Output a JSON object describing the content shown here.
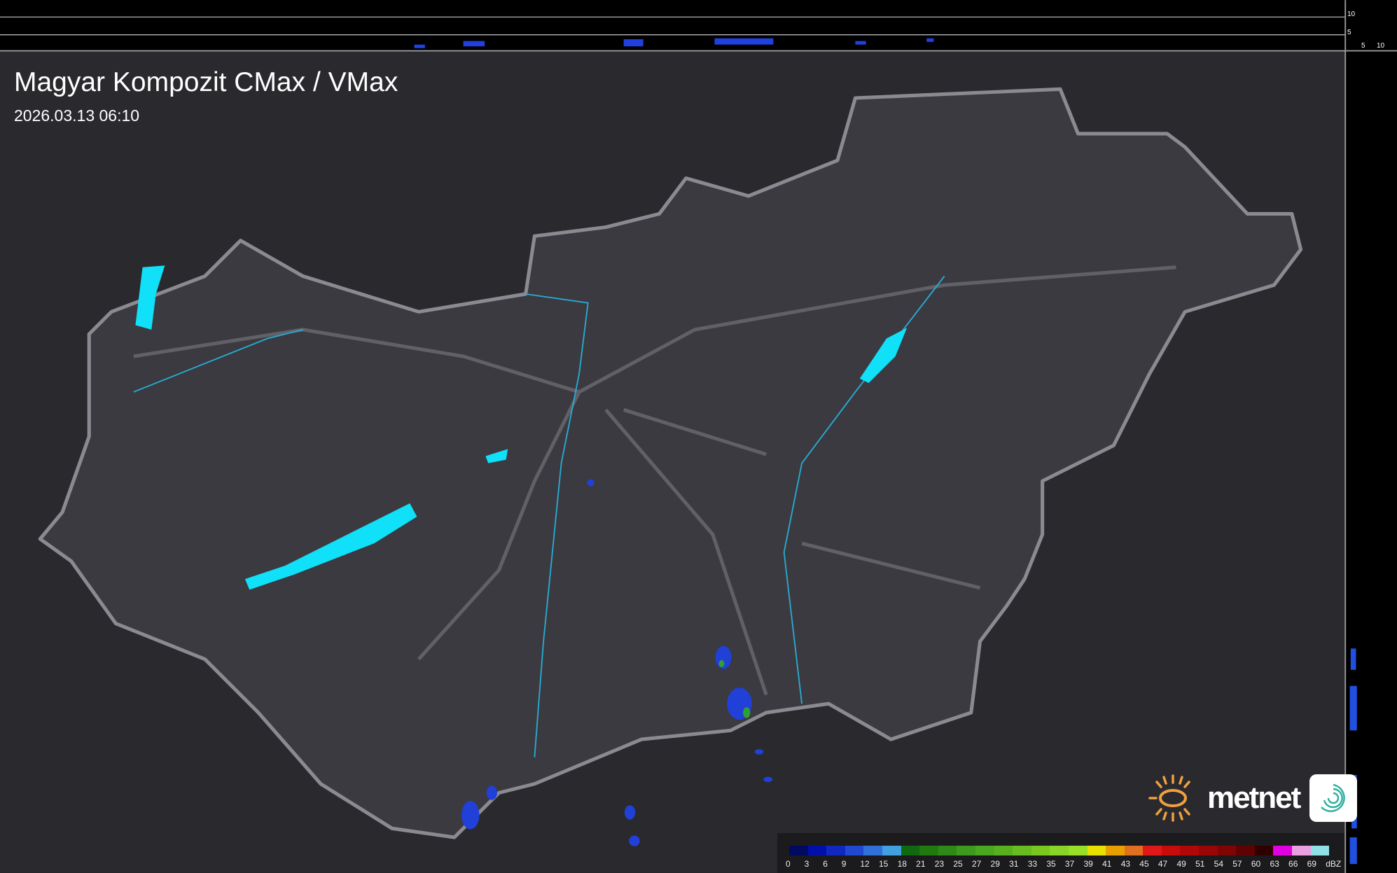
{
  "header": {
    "title": "Magyar Kompozit CMax / VMax",
    "timestamp": "2026.03.13 06:10"
  },
  "side_profile": {
    "top_ticks": [
      "10",
      "5"
    ],
    "right_ticks": [
      "5",
      "10"
    ]
  },
  "legend": {
    "labels": [
      "0",
      "3",
      "6",
      "9",
      "12",
      "15",
      "18",
      "21",
      "23",
      "25",
      "27",
      "29",
      "31",
      "33",
      "35",
      "37",
      "39",
      "41",
      "43",
      "45",
      "47",
      "49",
      "51",
      "54",
      "57",
      "60",
      "63",
      "66",
      "69"
    ],
    "unit": "dBZ",
    "colors": [
      "#000a60",
      "#0010a8",
      "#1028c0",
      "#2048d0",
      "#3070d8",
      "#40a0e0",
      "#106810",
      "#207a10",
      "#2e8a18",
      "#3c9a1c",
      "#4aa820",
      "#58b020",
      "#68bc20",
      "#78c820",
      "#88d428",
      "#98e028",
      "#e8e000",
      "#e8a000",
      "#e07020",
      "#e01818",
      "#c80c0c",
      "#b00808",
      "#980606",
      "#800404",
      "#600202",
      "#300000",
      "#e000e0",
      "#e8a0e0",
      "#90e0e8"
    ]
  },
  "logo": {
    "text": "metnet",
    "sun_color": "#f0a040",
    "app_color": "#30b0a0"
  }
}
